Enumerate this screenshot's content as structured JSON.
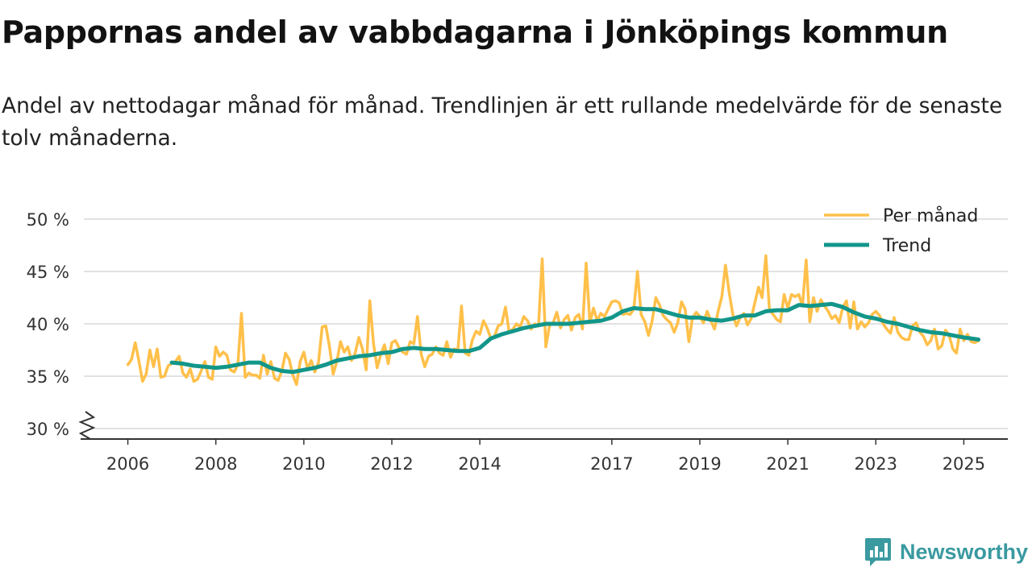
{
  "title": "Pappornas andel av vabbdagarna i Jönköpings kommun",
  "subtitle": "Andel av nettodagar månad för månad. Trendlinjen är ett rullande medelvärde för de senaste tolv månaderna.",
  "brand": {
    "name": "Newsworthy",
    "icon": "newsworthy-chart-icon"
  },
  "colors": {
    "monthly": "#ffc04a",
    "trend": "#12968a",
    "grid": "#d9d9d9",
    "axis": "#333333",
    "brand": "#3a9aa0"
  },
  "chart_data": {
    "type": "line",
    "title": "Pappornas andel av vabbdagarna i Jönköpings kommun",
    "xlabel": "",
    "ylabel": "",
    "ylim": [
      30,
      50
    ],
    "y_ticks": [
      30,
      35,
      40,
      45,
      50
    ],
    "y_tick_labels": [
      "30 %",
      "35 %",
      "40 %",
      "45 %",
      "50 %"
    ],
    "x_ticks": [
      2006,
      2008,
      2010,
      2012,
      2014,
      2017,
      2019,
      2021,
      2023,
      2025
    ],
    "x_tick_labels": [
      "2006",
      "2008",
      "2010",
      "2012",
      "2014",
      "2017",
      "2019",
      "2021",
      "2023",
      "2025"
    ],
    "x_range": [
      "2005-01",
      "2026-01"
    ],
    "axis_break": "30 %",
    "legend": {
      "position": "top-right",
      "entries": [
        "Per månad",
        "Trend"
      ]
    },
    "series": [
      {
        "name": "Per månad",
        "x": [
          "2006-01",
          "2006-02",
          "2006-03",
          "2006-04",
          "2006-05",
          "2006-06",
          "2006-07",
          "2006-08",
          "2006-09",
          "2006-10",
          "2006-11",
          "2006-12",
          "2007-01",
          "2007-02",
          "2007-03",
          "2007-04",
          "2007-05",
          "2007-06",
          "2007-07",
          "2007-08",
          "2007-09",
          "2007-10",
          "2007-11",
          "2007-12",
          "2008-01",
          "2008-02",
          "2008-03",
          "2008-04",
          "2008-05",
          "2008-06",
          "2008-07",
          "2008-08",
          "2008-09",
          "2008-10",
          "2008-11",
          "2008-12",
          "2009-01",
          "2009-02",
          "2009-03",
          "2009-04",
          "2009-05",
          "2009-06",
          "2009-07",
          "2009-08",
          "2009-09",
          "2009-10",
          "2009-11",
          "2009-12",
          "2010-01",
          "2010-02",
          "2010-03",
          "2010-04",
          "2010-05",
          "2010-06",
          "2010-07",
          "2010-08",
          "2010-09",
          "2010-10",
          "2010-11",
          "2010-12",
          "2011-01",
          "2011-02",
          "2011-03",
          "2011-04",
          "2011-05",
          "2011-06",
          "2011-07",
          "2011-08",
          "2011-09",
          "2011-10",
          "2011-11",
          "2011-12",
          "2012-01",
          "2012-02",
          "2012-03",
          "2012-04",
          "2012-05",
          "2012-06",
          "2012-07",
          "2012-08",
          "2012-09",
          "2012-10",
          "2012-11",
          "2012-12",
          "2013-01",
          "2013-02",
          "2013-03",
          "2013-04",
          "2013-05",
          "2013-06",
          "2013-07",
          "2013-08",
          "2013-09",
          "2013-10",
          "2013-11",
          "2013-12",
          "2014-01",
          "2014-02",
          "2014-03",
          "2014-04",
          "2014-05",
          "2014-06",
          "2014-07",
          "2014-08",
          "2014-09",
          "2014-10",
          "2014-11",
          "2014-12",
          "2015-01",
          "2015-02",
          "2015-03",
          "2015-04",
          "2015-05",
          "2015-06",
          "2015-07",
          "2015-08",
          "2015-09",
          "2015-10",
          "2015-11",
          "2015-12",
          "2016-01",
          "2016-02",
          "2016-03",
          "2016-04",
          "2016-05",
          "2016-06",
          "2016-07",
          "2016-08",
          "2016-09",
          "2016-10",
          "2016-11",
          "2016-12",
          "2017-01",
          "2017-02",
          "2017-03",
          "2017-04",
          "2017-05",
          "2017-06",
          "2017-07",
          "2017-08",
          "2017-09",
          "2017-10",
          "2017-11",
          "2017-12",
          "2018-01",
          "2018-02",
          "2018-03",
          "2018-04",
          "2018-05",
          "2018-06",
          "2018-07",
          "2018-08",
          "2018-09",
          "2018-10",
          "2018-11",
          "2018-12",
          "2019-01",
          "2019-02",
          "2019-03",
          "2019-04",
          "2019-05",
          "2019-06",
          "2019-07",
          "2019-08",
          "2019-09",
          "2019-10",
          "2019-11",
          "2019-12",
          "2020-01",
          "2020-02",
          "2020-03",
          "2020-04",
          "2020-05",
          "2020-06",
          "2020-07",
          "2020-08",
          "2020-09",
          "2020-10",
          "2020-11",
          "2020-12",
          "2021-01",
          "2021-02",
          "2021-03",
          "2021-04",
          "2021-05",
          "2021-06",
          "2021-07",
          "2021-08",
          "2021-09",
          "2021-10",
          "2021-11",
          "2021-12",
          "2022-01",
          "2022-02",
          "2022-03",
          "2022-04",
          "2022-05",
          "2022-06",
          "2022-07",
          "2022-08",
          "2022-09",
          "2022-10",
          "2022-11",
          "2022-12",
          "2023-01",
          "2023-02",
          "2023-03",
          "2023-04",
          "2023-05",
          "2023-06",
          "2023-07",
          "2023-08",
          "2023-09",
          "2023-10",
          "2023-11",
          "2023-12",
          "2024-01",
          "2024-02",
          "2024-03",
          "2024-04",
          "2024-05",
          "2024-06",
          "2024-07",
          "2024-08",
          "2024-09",
          "2024-10",
          "2024-11",
          "2024-12",
          "2025-01",
          "2025-02",
          "2025-03",
          "2025-04",
          "2025-05"
        ],
        "values": [
          36.1,
          36.6,
          38.2,
          36.5,
          34.5,
          35.2,
          37.5,
          35.9,
          37.6,
          34.9,
          35.0,
          36.0,
          36.2,
          36.4,
          36.9,
          35.3,
          34.9,
          35.7,
          34.5,
          34.7,
          35.5,
          36.4,
          34.9,
          34.7,
          37.8,
          36.9,
          37.3,
          37.0,
          35.6,
          35.4,
          36.1,
          41.0,
          34.9,
          35.3,
          35.1,
          35.1,
          34.8,
          37.0,
          35.2,
          36.4,
          34.8,
          34.6,
          35.5,
          37.2,
          36.6,
          35.1,
          34.2,
          36.4,
          37.3,
          35.7,
          36.5,
          35.4,
          36.3,
          39.7,
          39.8,
          37.8,
          35.2,
          36.4,
          38.3,
          37.3,
          37.8,
          36.5,
          37.2,
          38.7,
          37.6,
          35.6,
          42.2,
          38.1,
          35.8,
          37.1,
          38.0,
          36.2,
          38.2,
          38.4,
          37.7,
          37.3,
          37.1,
          38.3,
          38.1,
          40.7,
          37.1,
          35.9,
          36.9,
          37.1,
          37.8,
          37.2,
          37.0,
          38.3,
          36.8,
          37.6,
          37.5,
          41.7,
          37.2,
          37.0,
          38.5,
          39.3,
          39.0,
          40.3,
          39.6,
          38.6,
          38.8,
          39.8,
          40.0,
          41.6,
          39.2,
          39.5,
          40.0,
          39.7,
          40.7,
          40.3,
          39.5,
          40.0,
          39.8,
          46.2,
          37.8,
          39.8,
          40.1,
          41.1,
          39.6,
          40.4,
          40.8,
          39.4,
          40.6,
          40.9,
          39.5,
          45.8,
          40.1,
          41.5,
          40.3,
          41.0,
          40.7,
          41.4,
          42.1,
          42.2,
          42.0,
          40.9,
          41.0,
          40.9,
          41.4,
          45.0,
          40.9,
          40.2,
          38.9,
          40.3,
          42.5,
          41.8,
          40.8,
          40.4,
          40.1,
          39.2,
          40.1,
          42.1,
          41.4,
          38.3,
          40.6,
          41.1,
          40.7,
          40.1,
          41.2,
          40.3,
          39.5,
          41.2,
          42.6,
          45.6,
          43.0,
          40.9,
          39.8,
          40.6,
          41.0,
          39.9,
          40.5,
          42.0,
          43.5,
          42.5,
          46.5,
          41.3,
          40.9,
          40.4,
          40.2,
          42.8,
          41.5,
          42.8,
          42.6,
          42.8,
          41.7,
          46.1,
          40.2,
          42.5,
          41.2,
          42.3,
          41.7,
          41.2,
          40.5,
          40.8,
          40.1,
          41.6,
          42.2,
          39.6,
          42.1,
          39.5,
          40.2,
          39.7,
          40.1,
          40.9,
          41.2,
          40.8,
          40.0,
          39.5,
          39.1,
          40.6,
          39.2,
          38.7,
          38.5,
          38.5,
          39.8,
          40.1,
          39.2,
          38.8,
          38.0,
          38.4,
          39.5,
          37.6,
          37.9,
          39.4,
          38.9,
          37.6,
          37.2,
          39.5,
          38.4,
          39.0,
          38.3,
          38.2,
          38.4
        ]
      },
      {
        "name": "Trend",
        "x": [
          "2007-01",
          "2007-04",
          "2007-07",
          "2007-10",
          "2008-01",
          "2008-04",
          "2008-07",
          "2008-10",
          "2009-01",
          "2009-04",
          "2009-07",
          "2009-10",
          "2010-01",
          "2010-04",
          "2010-07",
          "2010-10",
          "2011-01",
          "2011-04",
          "2011-07",
          "2011-10",
          "2012-01",
          "2012-04",
          "2012-07",
          "2012-10",
          "2013-01",
          "2013-04",
          "2013-07",
          "2013-10",
          "2014-01",
          "2014-04",
          "2014-07",
          "2014-10",
          "2015-01",
          "2015-04",
          "2015-07",
          "2015-10",
          "2016-01",
          "2016-04",
          "2016-07",
          "2016-10",
          "2017-01",
          "2017-04",
          "2017-07",
          "2017-10",
          "2018-01",
          "2018-04",
          "2018-07",
          "2018-10",
          "2019-01",
          "2019-04",
          "2019-07",
          "2019-10",
          "2020-01",
          "2020-04",
          "2020-07",
          "2020-10",
          "2021-01",
          "2021-04",
          "2021-07",
          "2021-10",
          "2022-01",
          "2022-04",
          "2022-07",
          "2022-10",
          "2023-01",
          "2023-04",
          "2023-07",
          "2023-10",
          "2024-01",
          "2024-04",
          "2024-07",
          "2024-10",
          "2025-01",
          "2025-05"
        ],
        "values": [
          36.3,
          36.2,
          36.0,
          35.9,
          35.8,
          35.9,
          36.1,
          36.3,
          36.3,
          35.8,
          35.5,
          35.4,
          35.6,
          35.8,
          36.1,
          36.5,
          36.7,
          36.9,
          37.0,
          37.2,
          37.3,
          37.6,
          37.7,
          37.6,
          37.6,
          37.5,
          37.4,
          37.4,
          37.7,
          38.6,
          39.0,
          39.3,
          39.6,
          39.8,
          40.0,
          40.0,
          40.0,
          40.1,
          40.2,
          40.3,
          40.6,
          41.2,
          41.5,
          41.4,
          41.4,
          41.1,
          40.8,
          40.6,
          40.6,
          40.4,
          40.3,
          40.5,
          40.8,
          40.8,
          41.2,
          41.3,
          41.3,
          41.8,
          41.7,
          41.8,
          41.9,
          41.6,
          41.1,
          40.7,
          40.5,
          40.2,
          40.0,
          39.7,
          39.4,
          39.2,
          39.1,
          38.9,
          38.7,
          38.5
        ]
      }
    ]
  }
}
